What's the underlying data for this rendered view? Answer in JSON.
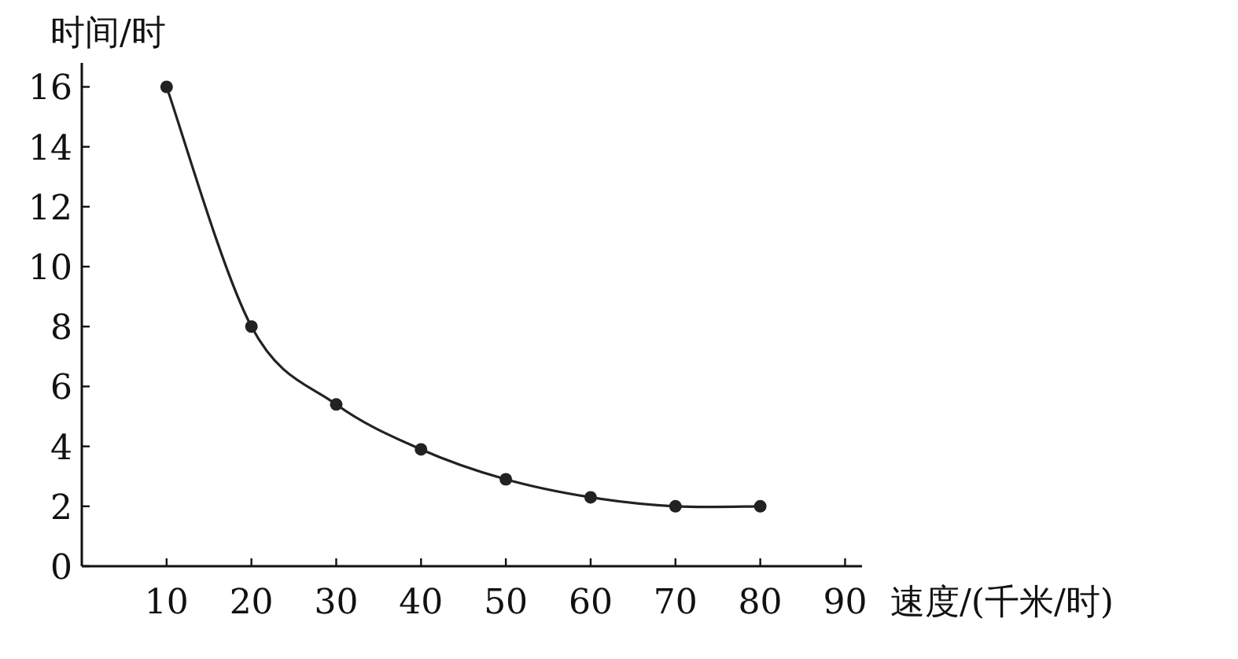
{
  "chart_data": {
    "type": "line",
    "xlabel": "速度/(千米/时)",
    "ylabel": "时间/时",
    "x": [
      10,
      20,
      30,
      40,
      50,
      60,
      70,
      80
    ],
    "series": [
      {
        "color": "#222222",
        "values": [
          16,
          8,
          5.4,
          3.9,
          2.9,
          2.3,
          2.0,
          2.0
        ]
      }
    ],
    "marker": "circle",
    "line_style": "solid",
    "xlim": [
      0,
      92
    ],
    "ylim": [
      0,
      16.8
    ],
    "xticks": [
      10,
      20,
      30,
      40,
      50,
      60,
      70,
      80,
      90
    ],
    "yticks": [
      0,
      2,
      4,
      6,
      8,
      10,
      12,
      14,
      16
    ]
  }
}
